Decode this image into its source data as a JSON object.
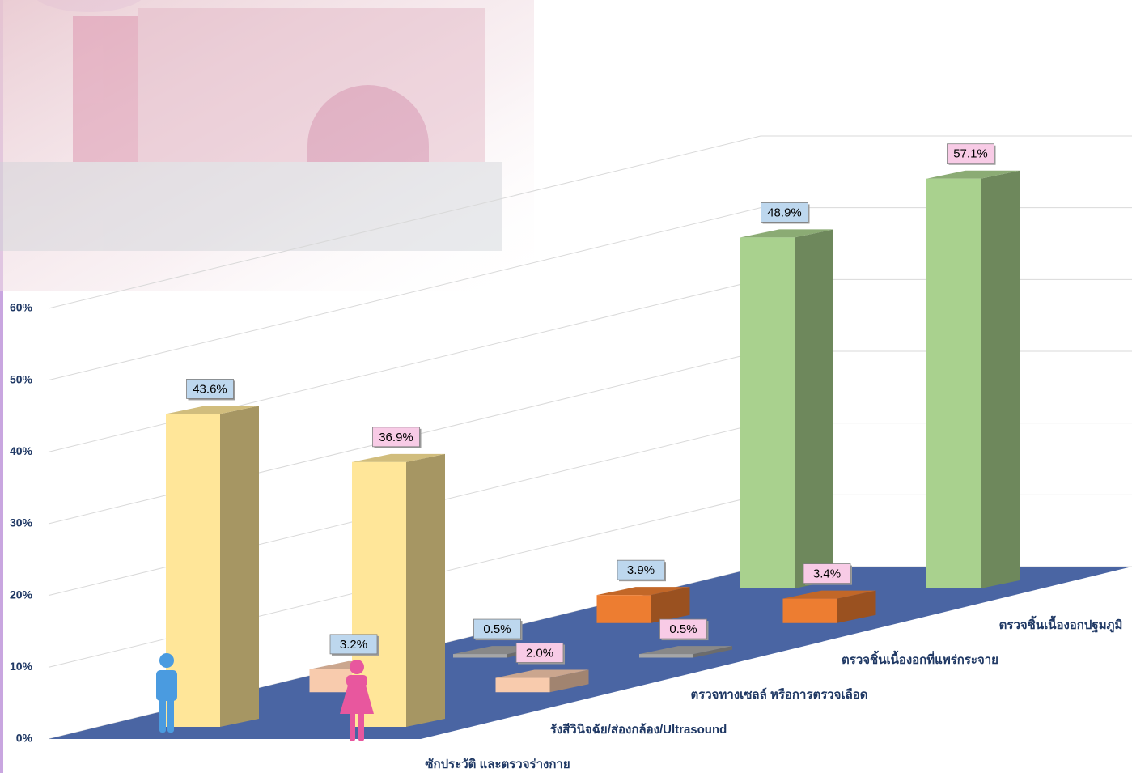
{
  "chart_data": {
    "type": "bar3d",
    "categories": [
      "ซักประวัติ และตรวจร่างกาย",
      "รังสีวินิจฉัย/ส่องกล้อง/Ultrasound",
      "ตรวจทางเซลล์ หรือการตรวจเลือด",
      "ตรวจชิ้นเนื้องอกที่แพร่กระจาย",
      "ตรวจชิ้นเนื้องอกปฐมภูมิ"
    ],
    "category_colors": [
      "#ffe699",
      "#f8cbad",
      "#a6a6a6",
      "#ed7d31",
      "#a9d18e"
    ],
    "series": [
      {
        "color": "#bdd7ee",
        "values": [
          43.6,
          3.2,
          0.5,
          3.9,
          48.9
        ],
        "value_labels": [
          "43.6%",
          "3.2%",
          "0.5%",
          "3.9%",
          "48.9%"
        ]
      },
      {
        "color": "#f8cbe6",
        "values": [
          36.9,
          2.0,
          0.5,
          3.4,
          57.1
        ],
        "value_labels": [
          "36.9%",
          "2.0%",
          "0.5%",
          "3.4%",
          "57.1%"
        ]
      }
    ],
    "ylim": [
      0,
      60
    ],
    "yticks": [
      {
        "value": 0,
        "label": "0%"
      },
      {
        "value": 10,
        "label": "10%"
      },
      {
        "value": 20,
        "label": "20%"
      },
      {
        "value": 30,
        "label": "30%"
      },
      {
        "value": 40,
        "label": "40%"
      },
      {
        "value": 50,
        "label": "50%"
      },
      {
        "value": 60,
        "label": "60%"
      }
    ],
    "grid": true
  }
}
